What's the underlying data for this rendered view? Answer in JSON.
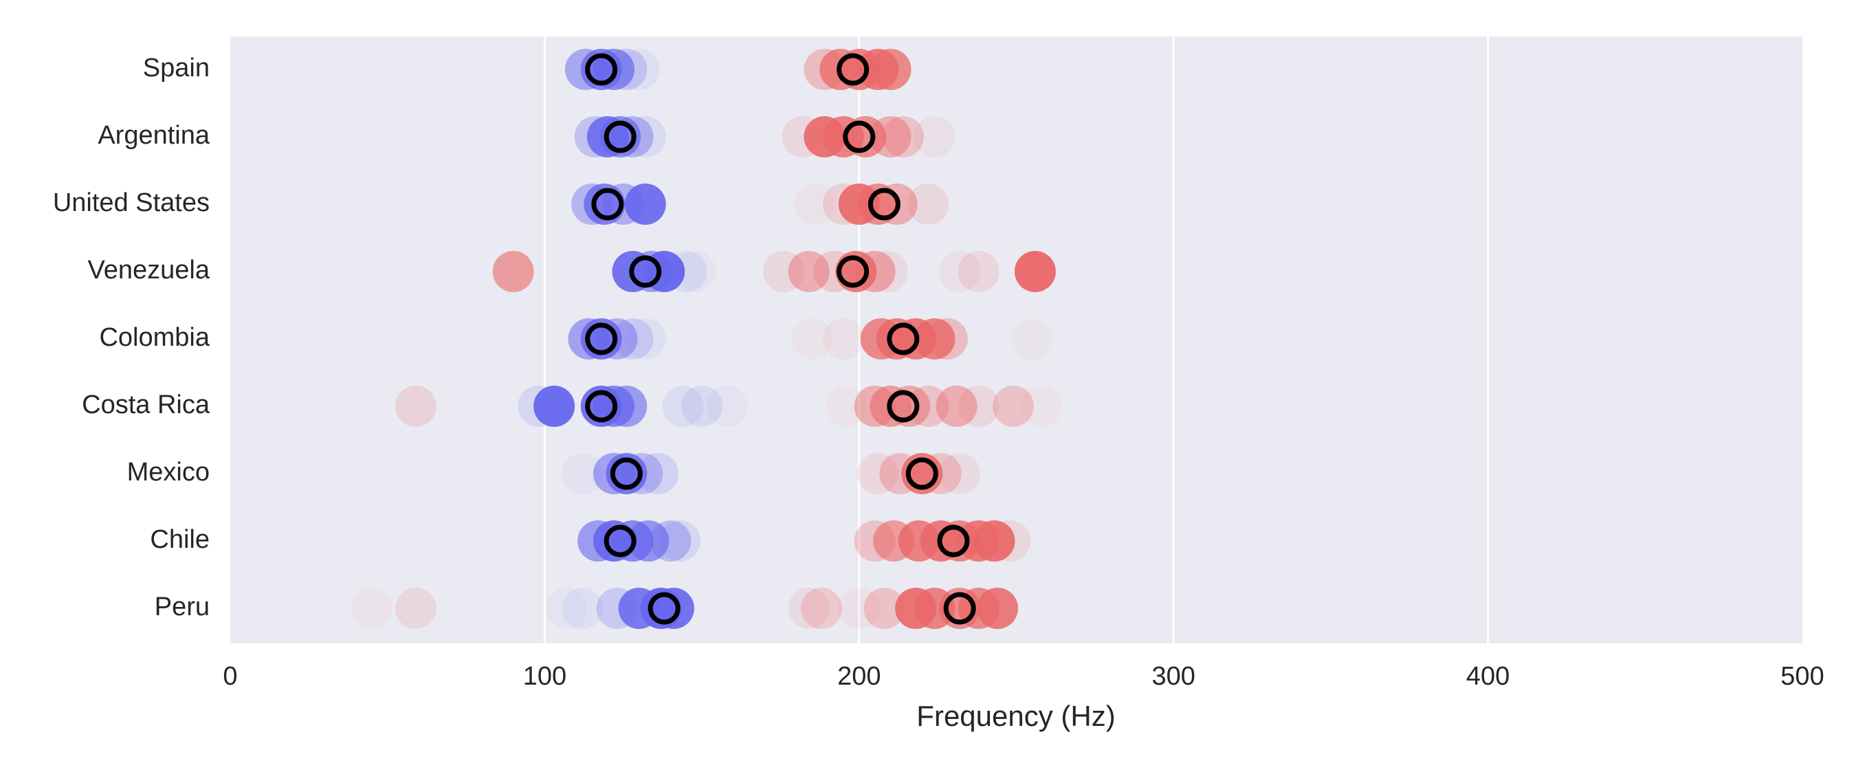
{
  "chart_data": {
    "type": "scatter",
    "title": "",
    "xlabel": "Frequency (Hz)",
    "ylabel": "",
    "xlim": [
      0,
      500
    ],
    "xticks": [
      0,
      100,
      200,
      300,
      400,
      500
    ],
    "grid": true,
    "categories": [
      "Spain",
      "Argentina",
      "United States",
      "Venezuela",
      "Colombia",
      "Costa Rica",
      "Mexico",
      "Chile",
      "Peru"
    ],
    "series_colors": {
      "blue": "#6666ee",
      "red": "#ea6767",
      "mean_edge": "#000000",
      "background": "#eaeaf2",
      "grid": "#ffffff"
    },
    "blue_points": [
      {
        "category": "Spain",
        "points": [
          [
            113,
            0.5
          ],
          [
            118,
            0.8
          ],
          [
            122,
            0.7
          ],
          [
            126,
            0.25
          ],
          [
            130,
            0.08
          ]
        ]
      },
      {
        "category": "Argentina",
        "points": [
          [
            116,
            0.3
          ],
          [
            120,
            0.85
          ],
          [
            124,
            0.7
          ],
          [
            128,
            0.4
          ],
          [
            132,
            0.12
          ]
        ]
      },
      {
        "category": "United States",
        "points": [
          [
            115,
            0.4
          ],
          [
            119,
            0.8
          ],
          [
            125,
            0.45
          ],
          [
            132,
            0.9
          ]
        ]
      },
      {
        "category": "Venezuela",
        "points": [
          [
            128,
            0.9
          ],
          [
            134,
            0.6
          ],
          [
            138,
            0.95
          ],
          [
            145,
            0.1
          ],
          [
            148,
            0.05
          ]
        ]
      },
      {
        "category": "Colombia",
        "points": [
          [
            114,
            0.55
          ],
          [
            118,
            0.85
          ],
          [
            123,
            0.45
          ],
          [
            128,
            0.2
          ],
          [
            132,
            0.08
          ]
        ]
      },
      {
        "category": "Costa Rica",
        "points": [
          [
            98,
            0.15
          ],
          [
            103,
            0.95
          ],
          [
            118,
            0.9
          ],
          [
            122,
            0.75
          ],
          [
            126,
            0.6
          ],
          [
            144,
            0.1
          ],
          [
            150,
            0.12
          ],
          [
            158,
            0.05
          ]
        ]
      },
      {
        "category": "Mexico",
        "points": [
          [
            112,
            0.06
          ],
          [
            122,
            0.55
          ],
          [
            126,
            0.85
          ],
          [
            131,
            0.35
          ],
          [
            136,
            0.18
          ]
        ]
      },
      {
        "category": "Chile",
        "points": [
          [
            117,
            0.6
          ],
          [
            122,
            0.9
          ],
          [
            128,
            0.75
          ],
          [
            133,
            0.65
          ],
          [
            140,
            0.35
          ],
          [
            143,
            0.15
          ]
        ]
      },
      {
        "category": "Peru",
        "points": [
          [
            107,
            0.05
          ],
          [
            112,
            0.08
          ],
          [
            123,
            0.25
          ],
          [
            130,
            0.85
          ],
          [
            137,
            0.95
          ],
          [
            141,
            0.9
          ]
        ]
      }
    ],
    "red_points": [
      {
        "category": "Spain",
        "points": [
          [
            189,
            0.35
          ],
          [
            194,
            0.75
          ],
          [
            200,
            0.8
          ],
          [
            206,
            0.85
          ],
          [
            210,
            0.75
          ]
        ]
      },
      {
        "category": "Argentina",
        "points": [
          [
            182,
            0.15
          ],
          [
            189,
            0.9
          ],
          [
            195,
            0.8
          ],
          [
            202,
            0.7
          ],
          [
            210,
            0.45
          ],
          [
            214,
            0.3
          ],
          [
            224,
            0.08
          ]
        ]
      },
      {
        "category": "United States",
        "points": [
          [
            186,
            0.06
          ],
          [
            195,
            0.2
          ],
          [
            200,
            0.9
          ],
          [
            206,
            0.7
          ],
          [
            212,
            0.45
          ],
          [
            222,
            0.15
          ]
        ]
      },
      {
        "category": "Venezuela",
        "points": [
          [
            90,
            0.6
          ],
          [
            176,
            0.15
          ],
          [
            184,
            0.45
          ],
          [
            192,
            0.25
          ],
          [
            199,
            0.85
          ],
          [
            205,
            0.5
          ],
          [
            209,
            0.12
          ],
          [
            232,
            0.08
          ],
          [
            238,
            0.15
          ],
          [
            256,
            0.95
          ]
        ]
      },
      {
        "category": "Colombia",
        "points": [
          [
            185,
            0.05
          ],
          [
            195,
            0.08
          ],
          [
            207,
            0.75
          ],
          [
            212,
            0.8
          ],
          [
            218,
            0.85
          ],
          [
            224,
            0.8
          ],
          [
            228,
            0.35
          ],
          [
            255,
            0.04
          ]
        ]
      },
      {
        "category": "Costa Rica",
        "points": [
          [
            59,
            0.18
          ],
          [
            196,
            0.05
          ],
          [
            205,
            0.45
          ],
          [
            210,
            0.6
          ],
          [
            216,
            0.5
          ],
          [
            222,
            0.3
          ],
          [
            231,
            0.45
          ],
          [
            238,
            0.15
          ],
          [
            249,
            0.3
          ],
          [
            258,
            0.05
          ]
        ]
      },
      {
        "category": "Mexico",
        "points": [
          [
            206,
            0.15
          ],
          [
            213,
            0.35
          ],
          [
            220,
            0.85
          ],
          [
            226,
            0.3
          ],
          [
            232,
            0.12
          ]
        ]
      },
      {
        "category": "Chile",
        "points": [
          [
            205,
            0.3
          ],
          [
            211,
            0.6
          ],
          [
            219,
            0.8
          ],
          [
            226,
            0.85
          ],
          [
            232,
            0.75
          ],
          [
            238,
            0.85
          ],
          [
            243,
            0.9
          ],
          [
            248,
            0.15
          ]
        ]
      },
      {
        "category": "Peru",
        "points": [
          [
            45,
            0.04
          ],
          [
            59,
            0.15
          ],
          [
            184,
            0.12
          ],
          [
            188,
            0.25
          ],
          [
            200,
            0.07
          ],
          [
            208,
            0.3
          ],
          [
            218,
            0.9
          ],
          [
            224,
            0.8
          ],
          [
            232,
            0.7
          ],
          [
            238,
            0.75
          ],
          [
            244,
            0.85
          ]
        ]
      }
    ],
    "mean_points": [
      {
        "category": "Spain",
        "blue": 118,
        "red": 198
      },
      {
        "category": "Argentina",
        "blue": 124,
        "red": 200
      },
      {
        "category": "United States",
        "blue": 120,
        "red": 208
      },
      {
        "category": "Venezuela",
        "blue": 132,
        "red": 198
      },
      {
        "category": "Colombia",
        "blue": 118,
        "red": 214
      },
      {
        "category": "Costa Rica",
        "blue": 118,
        "red": 214
      },
      {
        "category": "Mexico",
        "blue": 126,
        "red": 220
      },
      {
        "category": "Chile",
        "blue": 124,
        "red": 230
      },
      {
        "category": "Peru",
        "blue": 138,
        "red": 232
      }
    ]
  }
}
